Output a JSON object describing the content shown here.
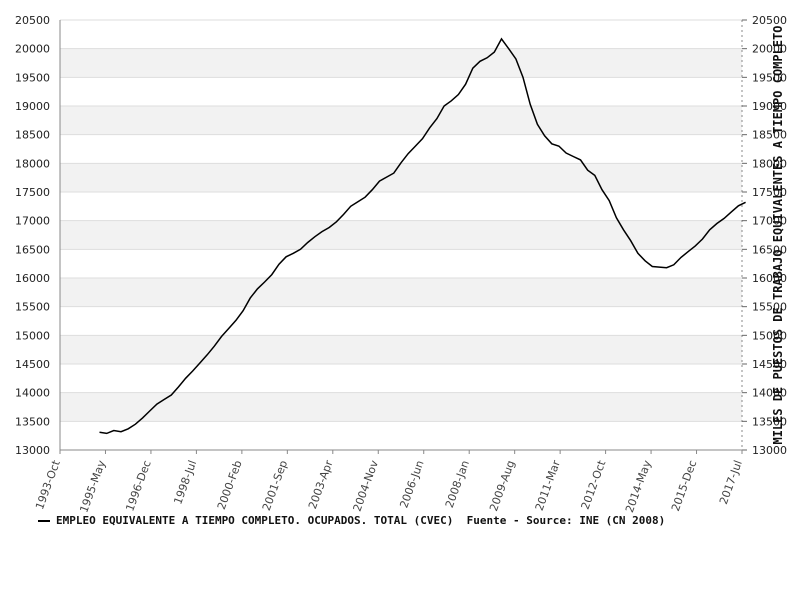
{
  "chart_data": {
    "type": "line",
    "ylabel_right": "MILES DE PUESTOS DE TRABAJO EQUIVALENTES A TIEMPO COMPLETO",
    "ylim": [
      13000,
      20500
    ],
    "y_ticks": [
      "13000",
      "13500",
      "14000",
      "14500",
      "15000",
      "15500",
      "16000",
      "16500",
      "17000",
      "17500",
      "18000",
      "18500",
      "19000",
      "19500",
      "20000",
      "20500"
    ],
    "x_ticks": [
      "1993-Oct",
      "1995-May",
      "1996-Dec",
      "1998-Jul",
      "2000-Feb",
      "2001-Sep",
      "2003-Apr",
      "2004-Nov",
      "2006-Jun",
      "2008-Jan",
      "2009-Aug",
      "2011-Mar",
      "2012-Oct",
      "2014-May",
      "2015-Dec",
      "2017-Jul"
    ],
    "grid": true,
    "alternating_bands": true,
    "series": [
      {
        "name": "EMPLEO EQUIVALENTE A TIEMPO COMPLETO. OCUPADOS. TOTAL (CVEC)",
        "color": "#000000",
        "points": [
          [
            "1995-Q1",
            13310
          ],
          [
            "1995-Q2",
            13290
          ],
          [
            "1995-Q3",
            13340
          ],
          [
            "1995-Q4",
            13320
          ],
          [
            "1996-Q1",
            13370
          ],
          [
            "1996-Q2",
            13450
          ],
          [
            "1996-Q3",
            13560
          ],
          [
            "1996-Q4",
            13680
          ],
          [
            "1997-Q1",
            13800
          ],
          [
            "1997-Q2",
            13880
          ],
          [
            "1997-Q3",
            13960
          ],
          [
            "1997-Q4",
            14100
          ],
          [
            "1998-Q1",
            14250
          ],
          [
            "1998-Q2",
            14380
          ],
          [
            "1998-Q3",
            14520
          ],
          [
            "1998-Q4",
            14660
          ],
          [
            "1999-Q1",
            14810
          ],
          [
            "1999-Q2",
            14980
          ],
          [
            "1999-Q3",
            15120
          ],
          [
            "1999-Q4",
            15260
          ],
          [
            "2000-Q1",
            15430
          ],
          [
            "2000-Q2",
            15650
          ],
          [
            "2000-Q3",
            15810
          ],
          [
            "2000-Q4",
            15930
          ],
          [
            "2001-Q1",
            16060
          ],
          [
            "2001-Q2",
            16240
          ],
          [
            "2001-Q3",
            16370
          ],
          [
            "2001-Q4",
            16430
          ],
          [
            "2002-Q1",
            16500
          ],
          [
            "2002-Q2",
            16620
          ],
          [
            "2002-Q3",
            16720
          ],
          [
            "2002-Q4",
            16810
          ],
          [
            "2003-Q1",
            16880
          ],
          [
            "2003-Q2",
            16980
          ],
          [
            "2003-Q3",
            17110
          ],
          [
            "2003-Q4",
            17250
          ],
          [
            "2004-Q1",
            17330
          ],
          [
            "2004-Q2",
            17410
          ],
          [
            "2004-Q3",
            17540
          ],
          [
            "2004-Q4",
            17690
          ],
          [
            "2005-Q1",
            17760
          ],
          [
            "2005-Q2",
            17830
          ],
          [
            "2005-Q3",
            18010
          ],
          [
            "2005-Q4",
            18170
          ],
          [
            "2006-Q1",
            18300
          ],
          [
            "2006-Q2",
            18430
          ],
          [
            "2006-Q3",
            18620
          ],
          [
            "2006-Q4",
            18780
          ],
          [
            "2007-Q1",
            19000
          ],
          [
            "2007-Q2",
            19090
          ],
          [
            "2007-Q3",
            19200
          ],
          [
            "2007-Q4",
            19380
          ],
          [
            "2008-Q1",
            19660
          ],
          [
            "2008-Q2",
            19780
          ],
          [
            "2008-Q3",
            19840
          ],
          [
            "2008-Q4",
            19940
          ],
          [
            "2009-Q1",
            20170
          ],
          [
            "2009-Q2",
            20000
          ],
          [
            "2009-Q3",
            19820
          ],
          [
            "2009-Q4",
            19500
          ],
          [
            "2010-Q1",
            19030
          ],
          [
            "2010-Q2",
            18680
          ],
          [
            "2010-Q3",
            18480
          ],
          [
            "2010-Q4",
            18340
          ],
          [
            "2011-Q1",
            18300
          ],
          [
            "2011-Q2",
            18180
          ],
          [
            "2011-Q3",
            18120
          ],
          [
            "2011-Q4",
            18060
          ],
          [
            "2012-Q1",
            17880
          ],
          [
            "2012-Q2",
            17790
          ],
          [
            "2012-Q3",
            17540
          ],
          [
            "2012-Q4",
            17350
          ],
          [
            "2013-Q1",
            17050
          ],
          [
            "2013-Q2",
            16840
          ],
          [
            "2013-Q3",
            16650
          ],
          [
            "2013-Q4",
            16430
          ],
          [
            "2014-Q1",
            16300
          ],
          [
            "2014-Q2",
            16200
          ],
          [
            "2014-Q3",
            16190
          ],
          [
            "2014-Q4",
            16180
          ],
          [
            "2015-Q1",
            16230
          ],
          [
            "2015-Q2",
            16360
          ],
          [
            "2015-Q3",
            16460
          ],
          [
            "2015-Q4",
            16560
          ],
          [
            "2016-Q1",
            16680
          ],
          [
            "2016-Q2",
            16840
          ],
          [
            "2016-Q3",
            16950
          ],
          [
            "2016-Q4",
            17040
          ],
          [
            "2017-Q1",
            17150
          ],
          [
            "2017-Q2",
            17260
          ],
          [
            "2017-Q3",
            17320
          ]
        ]
      }
    ]
  },
  "legend": {
    "series_label": "EMPLEO EQUIVALENTE A TIEMPO COMPLETO. OCUPADOS. TOTAL (CVEC)",
    "source": "Fuente - Source: INE (CN 2008)"
  }
}
